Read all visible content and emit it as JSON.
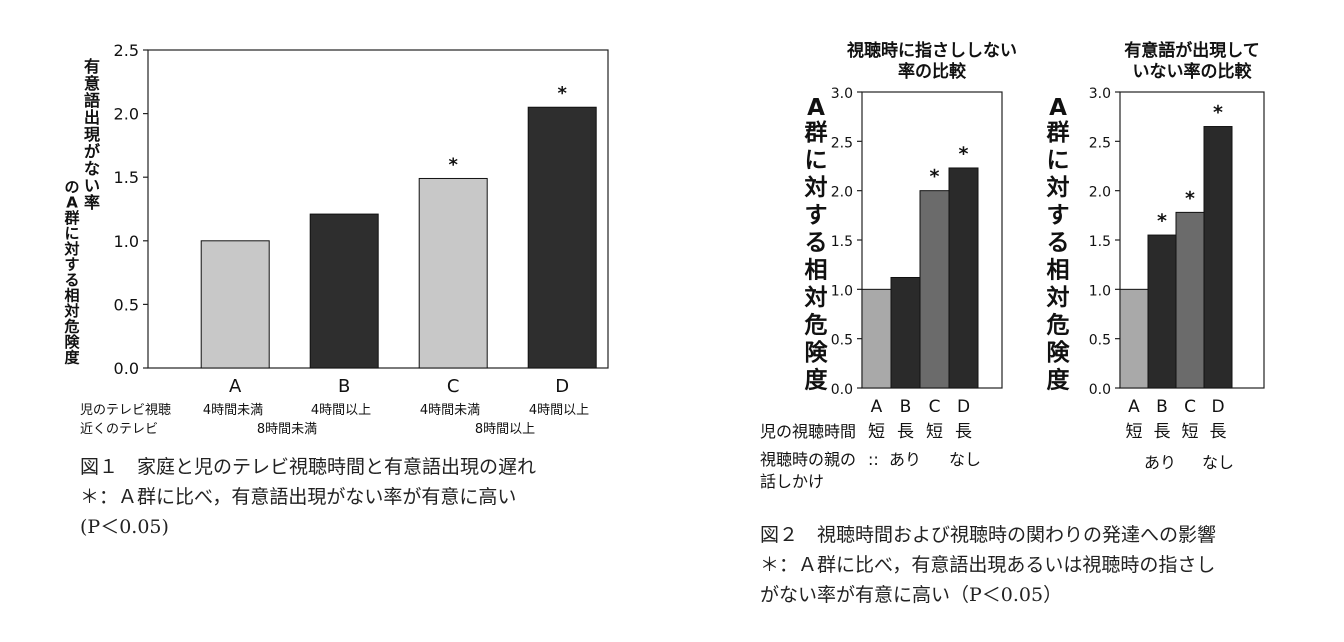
{
  "chart_data": [
    {
      "type": "bar",
      "ylabel": "有意語出現がない率のA群に対する相対危険度",
      "ylim": [
        0,
        2.5
      ],
      "yticks": [
        "0.0",
        "0.5",
        "1.0",
        "1.5",
        "2.0",
        "2.5"
      ],
      "categories": [
        "A",
        "B",
        "C",
        "D"
      ],
      "values": [
        1.0,
        1.21,
        1.49,
        2.05
      ],
      "colors": [
        "#c8c8c8",
        "#2e2e2e",
        "#c8c8c8",
        "#2e2e2e"
      ],
      "significant": [
        "",
        "",
        "*",
        "*"
      ],
      "row_labels": [
        "児のテレビ視聴",
        "近くのテレビ"
      ],
      "group_labels_row1": [
        "4時間未満",
        "4時間以上",
        "4時間未満",
        "4時間以上"
      ],
      "group_labels_row2": [
        "8時間未満",
        "8時間以上"
      ]
    },
    {
      "type": "bar",
      "title": "視聴時に指さししない\n率の比較",
      "ylabel": "A群に対する相対危険度",
      "ylim": [
        0,
        3.0
      ],
      "yticks": [
        "0.0",
        "0.5",
        "1.0",
        "1.5",
        "2.0",
        "2.5",
        "3.0"
      ],
      "categories": [
        "A",
        "B",
        "C",
        "D"
      ],
      "values": [
        1.0,
        1.12,
        2.0,
        2.23
      ],
      "colors": [
        "#a9a9a9",
        "#2a2a2a",
        "#6b6b6b",
        "#2a2a2a"
      ],
      "significant": [
        "",
        "",
        "*",
        "*"
      ],
      "sub_labels": [
        "短",
        "長",
        "短",
        "長"
      ],
      "row_labels": [
        "児の視聴時間",
        "視聴時の親の",
        "話しかけ"
      ],
      "row_prefixes": [
        ":",
        "::"
      ],
      "talk_labels": [
        "あり",
        "なし"
      ]
    },
    {
      "type": "bar",
      "title": "有意語が出現して\nいない率の比較",
      "ylabel": "A群に対する相対危険度",
      "ylim": [
        0,
        3.0
      ],
      "yticks": [
        "0.0",
        "0.5",
        "1.0",
        "1.5",
        "2.0",
        "2.5",
        "3.0"
      ],
      "categories": [
        "A",
        "B",
        "C",
        "D"
      ],
      "values": [
        1.0,
        1.55,
        1.78,
        2.65
      ],
      "colors": [
        "#a9a9a9",
        "#2a2a2a",
        "#6b6b6b",
        "#2a2a2a"
      ],
      "significant": [
        "",
        "*",
        "*",
        "*"
      ],
      "sub_labels": [
        "短",
        "長",
        "短",
        "長"
      ],
      "talk_labels": [
        "あり",
        "なし"
      ]
    }
  ],
  "captions": {
    "fig1_line1": "図１　家庭と児のテレビ視聴時間と有意語出現の遅れ",
    "fig1_line2": "＊：Ａ群に比べ，有意語出現がない率が有意に高い",
    "fig1_line3": "(P＜0.05)",
    "fig2_line1": "図２　視聴時間および視聴時の関わりの発達への影響",
    "fig2_line2": "＊：Ａ群に比べ，有意語出現あるいは視聴時の指さし",
    "fig2_line3": "がない率が有意に高い（P＜0.05）"
  }
}
